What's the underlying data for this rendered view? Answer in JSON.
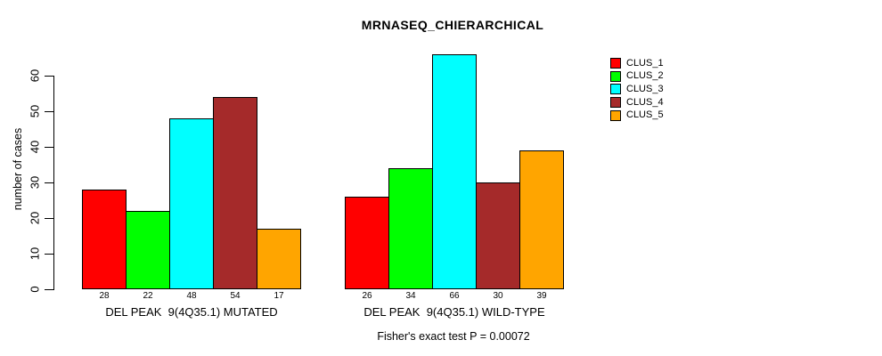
{
  "title": "MRNASEQ_CHIERARCHICAL",
  "y_axis": {
    "label": "number of cases"
  },
  "footer": {
    "text": "Fisher's exact test P = 0.00072"
  },
  "chart_data": {
    "type": "bar",
    "title": "MRNASEQ_CHIERARCHICAL",
    "ylabel": "number of cases",
    "xlabel": "",
    "categories": [
      "DEL PEAK  9(4Q35.1) MUTATED",
      "DEL PEAK  9(4Q35.1) WILD-TYPE"
    ],
    "series": [
      {
        "name": "CLUS_1",
        "color": "#FF0000",
        "values": [
          28,
          26
        ]
      },
      {
        "name": "CLUS_2",
        "color": "#00FF00",
        "values": [
          22,
          34
        ]
      },
      {
        "name": "CLUS_3",
        "color": "#00FFFF",
        "values": [
          48,
          66
        ]
      },
      {
        "name": "CLUS_4",
        "color": "#A52A2A",
        "values": [
          54,
          30
        ]
      },
      {
        "name": "CLUS_5",
        "color": "#FFA500",
        "values": [
          17,
          39
        ]
      }
    ],
    "yticks": [
      0,
      10,
      20,
      30,
      40,
      50,
      60
    ],
    "ylim": [
      0,
      66
    ],
    "grid": false,
    "show_bar_value_labels": true,
    "legend_position": "right",
    "legend_entries": [
      "CLUS_1",
      "CLUS_2",
      "CLUS_3",
      "CLUS_4",
      "CLUS_5"
    ],
    "annotation": "Fisher's exact test P = 0.00072"
  }
}
